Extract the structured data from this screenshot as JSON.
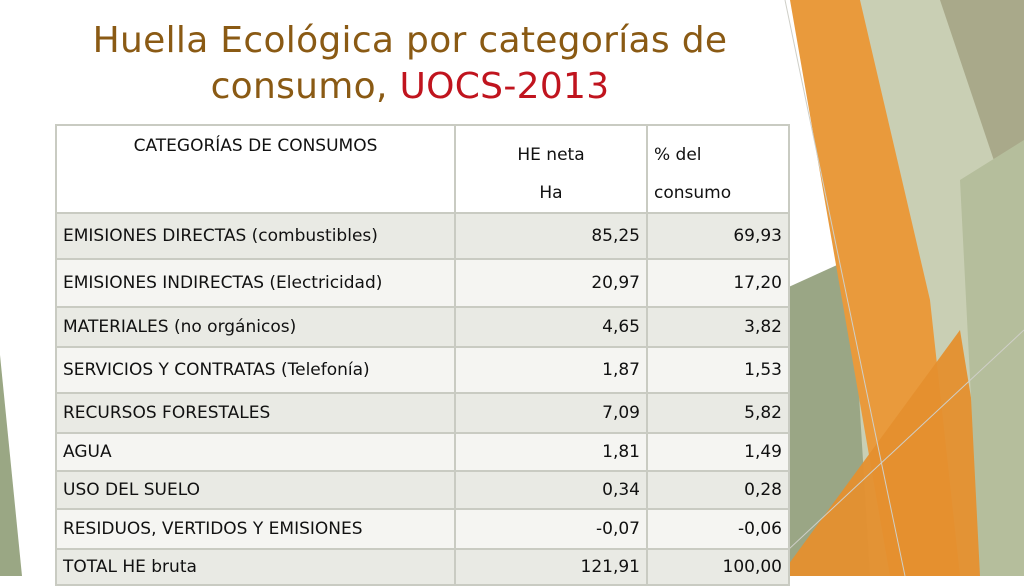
{
  "slide": {
    "title_line1": "Huella Ecológica por categorías de",
    "title_line2_prefix": "consumo, ",
    "title_line2_accent": "UOCS-2013"
  },
  "table": {
    "headers": {
      "category": "CATEGORÍAS DE CONSUMOS",
      "he_line1": "HE neta",
      "he_line2": "Ha",
      "pct_line1": "%  del",
      "pct_line2": "consumo"
    },
    "rows": [
      {
        "category": "EMISIONES DIRECTAS (combustibles)",
        "he": "85,25",
        "pct": "69,93"
      },
      {
        "category": "EMISIONES INDIRECTAS (Electricidad)",
        "he": "20,97",
        "pct": "17,20"
      },
      {
        "category": "MATERIALES (no orgánicos)",
        "he": "4,65",
        "pct": "3,82"
      },
      {
        "category": "SERVICIOS Y CONTRATAS (Telefonía)",
        "he": "1,87",
        "pct": "1,53"
      },
      {
        "category": "RECURSOS FORESTALES",
        "he": "7,09",
        "pct": "5,82"
      },
      {
        "category": "AGUA",
        "he": "1,81",
        "pct": "1,49"
      },
      {
        "category": "USO DEL SUELO",
        "he": "0,34",
        "pct": "0,28"
      },
      {
        "category": "RESIDUOS, VERTIDOS Y EMISIONES",
        "he": "-0,07",
        "pct": "-0,06"
      },
      {
        "category": "TOTAL HE bruta",
        "he": "121,91",
        "pct": "100,00"
      }
    ]
  },
  "colors": {
    "title": "#8a5a14",
    "title_accent": "#c0141e",
    "deco_orange": "#e99a3c",
    "deco_green": "#9aa784"
  }
}
